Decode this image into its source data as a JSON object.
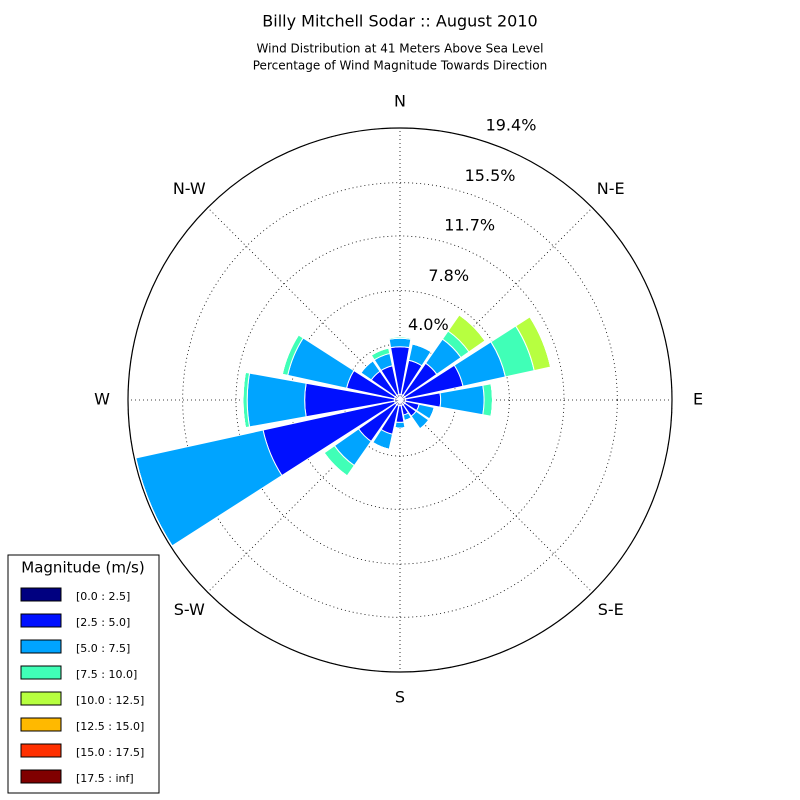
{
  "chart_data": {
    "type": "windrose",
    "title": "Billy Mitchell Sodar :: August 2010",
    "subtitle": "Wind Distribution at 41 Meters Above Sea Level",
    "subtitle2": "Percentage of Wind Magnitude Towards Direction",
    "categories": [
      "N",
      null,
      "N-E",
      null,
      "E",
      null,
      "S-E",
      null,
      "S",
      null,
      "S-W",
      null,
      "W",
      null,
      "N-W",
      null
    ],
    "ylim": [
      0,
      19.4
    ],
    "yticks": [
      {
        "value": 4.0,
        "label": "4.0%"
      },
      {
        "value": 7.8,
        "label": "7.8%"
      },
      {
        "value": 11.7,
        "label": "11.7%"
      },
      {
        "value": 15.5,
        "label": "15.5%"
      },
      {
        "value": 19.4,
        "label": "19.4%"
      }
    ],
    "grid": true,
    "legend_title": "Magnitude (m/s)",
    "legend_position": "lower left",
    "series": [
      {
        "name": "[0.0 : 2.5]",
        "color": "#000080",
        "values": [
          0.4,
          0.4,
          0.4,
          0.4,
          0.4,
          0.4,
          0.4,
          0.4,
          0.4,
          0.4,
          0.4,
          0.4,
          0.4,
          0.4,
          0.4,
          0.4
        ]
      },
      {
        "name": "[2.5 : 5.0]",
        "color": "#0010ff",
        "values": [
          3.4,
          2.5,
          2.8,
          4.2,
          2.5,
          1.0,
          1.0,
          0.7,
          1.2,
          2.1,
          3.2,
          9.6,
          6.4,
          3.5,
          2.1,
          2.1
        ]
      },
      {
        "name": "[5.0 : 7.5]",
        "color": "#00a4ff",
        "values": [
          0.6,
          1.2,
          2.1,
          3.1,
          3.1,
          1.1,
          1.1,
          0.4,
          0.4,
          1.1,
          2.1,
          9.3,
          4.1,
          4.3,
          0.9,
          0.9
        ]
      },
      {
        "name": "[7.5 : 10.0]",
        "color": "#40ffb7",
        "values": [
          0.1,
          0,
          0.7,
          2.1,
          0.6,
          0,
          0,
          0,
          0,
          0,
          0.9,
          0,
          0.3,
          0.4,
          0,
          0.4
        ]
      },
      {
        "name": "[10.0 : 12.5]",
        "color": "#b7ff40",
        "values": [
          0,
          0,
          1.4,
          1.2,
          0,
          0,
          0,
          0,
          0,
          0,
          0,
          0,
          0,
          0,
          0,
          0
        ]
      },
      {
        "name": "[12.5 : 15.0]",
        "color": "#ffb900",
        "values": [
          0,
          0,
          0,
          0,
          0,
          0,
          0,
          0,
          0,
          0,
          0,
          0,
          0,
          0,
          0,
          0
        ]
      },
      {
        "name": "[15.0 : 17.5]",
        "color": "#ff3000",
        "values": [
          0,
          0,
          0,
          0,
          0,
          0,
          0,
          0,
          0,
          0,
          0,
          0,
          0,
          0,
          0,
          0
        ]
      },
      {
        "name": "[17.5 : inf]",
        "color": "#800000",
        "values": [
          0,
          0,
          0,
          0,
          0,
          0,
          0,
          0,
          0,
          0,
          0,
          0,
          0,
          0,
          0,
          0
        ]
      }
    ]
  }
}
